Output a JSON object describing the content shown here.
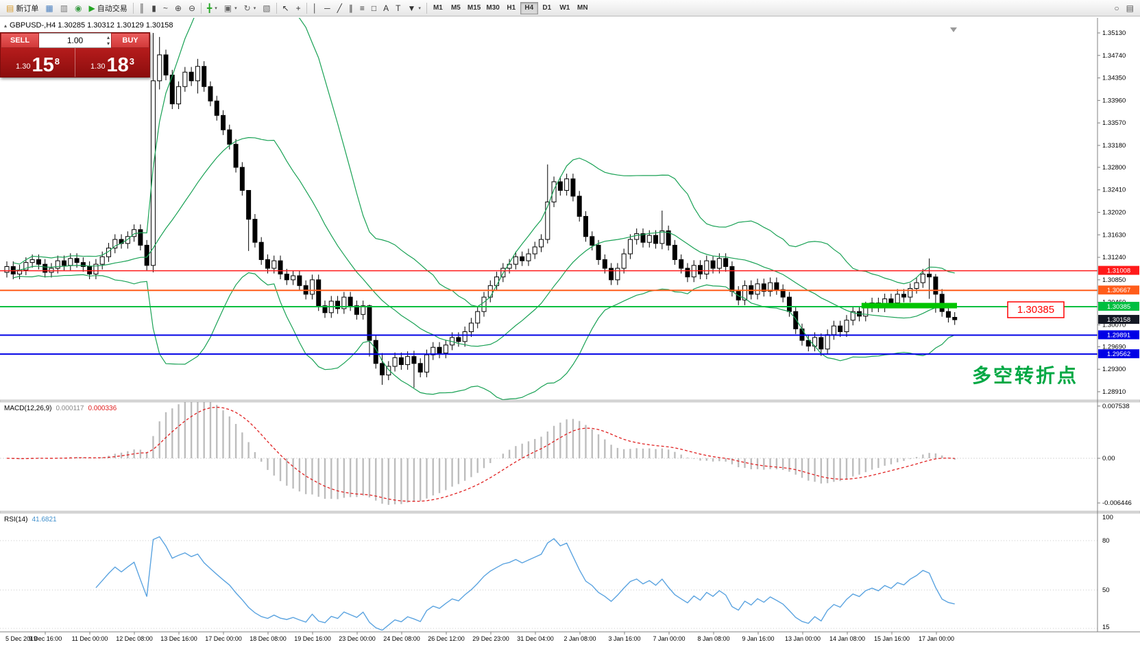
{
  "toolbar": {
    "buttons": [
      {
        "name": "new-order",
        "label": "新订单",
        "glyph": "▤",
        "color": "#d79b2e"
      },
      {
        "name": "chart-list",
        "glyph": "▦",
        "color": "#4a7fbf"
      },
      {
        "name": "market-watch",
        "glyph": "▥",
        "color": "#777777"
      },
      {
        "name": "community",
        "glyph": "◉",
        "color": "#3f9e49"
      },
      {
        "name": "auto-trade",
        "label": "自动交易",
        "glyph": "▶",
        "color": "#23a523"
      },
      {
        "sep": true
      },
      {
        "name": "bar-chart",
        "glyph": "║",
        "color": "#444444"
      },
      {
        "name": "candlestick-chart",
        "glyph": "▮",
        "color": "#444444"
      },
      {
        "name": "line-chart",
        "glyph": "~",
        "color": "#444444"
      },
      {
        "name": "zoom-in",
        "glyph": "⊕",
        "color": "#444444"
      },
      {
        "name": "zoom-out",
        "glyph": "⊖",
        "color": "#444444"
      },
      {
        "sep": true
      },
      {
        "name": "new-chart",
        "glyph": "╋",
        "color": "#23a523",
        "caret": true
      },
      {
        "name": "profiles",
        "glyph": "▣",
        "color": "#666666",
        "caret": true
      },
      {
        "name": "period-cycle",
        "glyph": "↻",
        "color": "#666666",
        "caret": true
      },
      {
        "name": "chart-shift",
        "glyph": "▧",
        "color": "#666666"
      },
      {
        "sep": true
      },
      {
        "name": "cursor",
        "glyph": "↖",
        "color": "#333333"
      },
      {
        "name": "crosshair",
        "glyph": "+",
        "color": "#333333"
      },
      {
        "sep": true
      },
      {
        "name": "vertical-line",
        "glyph": "│",
        "color": "#333333"
      },
      {
        "name": "horizontal-line",
        "glyph": "─",
        "color": "#333333"
      },
      {
        "name": "trendline",
        "glyph": "╱",
        "color": "#333333"
      },
      {
        "name": "equidistant-channel",
        "glyph": "∥",
        "color": "#333333"
      },
      {
        "name": "fibonacci",
        "glyph": "≡",
        "color": "#333333"
      },
      {
        "name": "shapes",
        "glyph": "□",
        "color": "#333333"
      },
      {
        "name": "text",
        "glyph": "A",
        "color": "#333333"
      },
      {
        "name": "text-label",
        "glyph": "T",
        "color": "#333333"
      },
      {
        "name": "arrows",
        "glyph": "▼",
        "color": "#333333",
        "caret": true
      },
      {
        "sep": true
      }
    ],
    "timeframes": [
      "M1",
      "M5",
      "M15",
      "M30",
      "H1",
      "H4",
      "D1",
      "W1",
      "MN"
    ],
    "active_timeframe": "H4",
    "right_icons": [
      {
        "name": "search",
        "glyph": "○",
        "color": "#555555"
      },
      {
        "name": "chart-settings",
        "glyph": "▤",
        "color": "#555555"
      }
    ]
  },
  "symbol_header": {
    "toggle_icon": "▴",
    "text": "GBPUSD-,H4  1.30285 1.30312 1.30129 1.30158"
  },
  "order_panel": {
    "sell_label": "SELL",
    "buy_label": "BUY",
    "volume": "1.00",
    "sell_price_prefix": "1.30",
    "sell_price_big": "15",
    "sell_price_sup": "8",
    "buy_price_prefix": "1.30",
    "buy_price_big": "18",
    "buy_price_sup": "3"
  },
  "chart_data": {
    "type": "candlestick",
    "symbol": "GBPUSD-",
    "timeframe": "H4",
    "ohlc_header": {
      "open": "1.30285",
      "high": "1.30312",
      "low": "1.30129",
      "close": "1.30158"
    },
    "price_ticks": [
      "1.35130",
      "1.34740",
      "1.34350",
      "1.33960",
      "1.33570",
      "1.33180",
      "1.32800",
      "1.32410",
      "1.32020",
      "1.31630",
      "1.31240",
      "1.30850",
      "1.30460",
      "1.30070",
      "1.29690",
      "1.29300",
      "1.28910"
    ],
    "time_labels": [
      "5 Dec 2019",
      "9 Dec 16:00",
      "11 Dec 00:00",
      "12 Dec 08:00",
      "13 Dec 16:00",
      "17 Dec 00:00",
      "18 Dec 08:00",
      "19 Dec 16:00",
      "23 Dec 00:00",
      "24 Dec 08:00",
      "26 Dec 12:00",
      "29 Dec 23:00",
      "31 Dec 04:00",
      "2 Jan 08:00",
      "3 Jan 16:00",
      "7 Jan 00:00",
      "8 Jan 08:00",
      "9 Jan 16:00",
      "13 Jan 00:00",
      "14 Jan 08:00",
      "15 Jan 16:00",
      "17 Jan 00:00"
    ],
    "closes": [
      1.3108,
      1.3095,
      1.3102,
      1.3115,
      1.312,
      1.3112,
      1.3098,
      1.3105,
      1.3118,
      1.311,
      1.3122,
      1.3115,
      1.3108,
      1.3095,
      1.3112,
      1.3125,
      1.314,
      1.3155,
      1.3148,
      1.316,
      1.3172,
      1.3145,
      1.311,
      1.343,
      1.3475,
      1.344,
      1.339,
      1.342,
      1.3445,
      1.343,
      1.3455,
      1.342,
      1.3395,
      1.337,
      1.3345,
      1.332,
      1.328,
      1.324,
      1.319,
      1.315,
      1.312,
      1.3105,
      1.3118,
      1.3095,
      1.3085,
      1.3092,
      1.3075,
      1.306,
      1.3085,
      1.304,
      1.3028,
      1.3048,
      1.3035,
      1.3055,
      1.304,
      1.3025,
      1.304,
      1.298,
      1.294,
      1.292,
      1.2935,
      1.295,
      1.2938,
      1.2952,
      1.294,
      1.2925,
      1.2955,
      1.2968,
      1.2958,
      1.2972,
      1.2985,
      1.2978,
      1.2995,
      1.301,
      1.303,
      1.3055,
      1.3075,
      1.309,
      1.3105,
      1.3112,
      1.3125,
      1.3118,
      1.313,
      1.3142,
      1.3155,
      1.322,
      1.3255,
      1.324,
      1.326,
      1.323,
      1.3195,
      1.316,
      1.3145,
      1.312,
      1.3105,
      1.3085,
      1.3105,
      1.313,
      1.3155,
      1.3165,
      1.315,
      1.3162,
      1.3148,
      1.317,
      1.3145,
      1.312,
      1.3105,
      1.309,
      1.311,
      1.3095,
      1.3118,
      1.3105,
      1.3122,
      1.3108,
      1.3065,
      1.305,
      1.3075,
      1.306,
      1.3078,
      1.3065,
      1.308,
      1.3068,
      1.3055,
      1.303,
      1.3,
      1.298,
      1.297,
      1.2985,
      1.2965,
      1.299,
      1.3005,
      1.2995,
      1.3015,
      1.303,
      1.3022,
      1.3038,
      1.3045,
      1.3038,
      1.3052,
      1.3045,
      1.306,
      1.3055,
      1.307,
      1.308,
      1.3095,
      1.309,
      1.306,
      1.303,
      1.302,
      1.30158
    ],
    "wick_overrides": {
      "23": [
        1.3513,
        1.3098
      ],
      "24": [
        1.3506,
        1.3415
      ],
      "30": [
        1.3468,
        1.3408
      ],
      "38": [
        1.3235,
        1.3135
      ],
      "57": [
        1.3042,
        1.2952
      ],
      "59": [
        1.2958,
        1.2903
      ],
      "64": [
        1.2962,
        1.2898
      ],
      "85": [
        1.3285,
        1.3148
      ],
      "103": [
        1.3205,
        1.3138
      ],
      "128": [
        1.2992,
        1.2953
      ],
      "145": [
        1.3122,
        1.3052
      ],
      "146": [
        1.3095,
        1.3028
      ]
    },
    "bollinger": {
      "period": 20,
      "deviation": 2,
      "color": "#18a154"
    },
    "levels": [
      {
        "price": 1.31008,
        "label": "1.31008",
        "color": "#ff1a1a",
        "width": 1.5
      },
      {
        "price": 1.30667,
        "label": "1.30667",
        "color": "#ff5c1a",
        "width": 2
      },
      {
        "price": 1.30385,
        "label": "1.30385",
        "color": "#00bf40",
        "width": 2
      },
      {
        "price": 1.29891,
        "label": "1.29891",
        "color": "#0000e6",
        "width": 2
      },
      {
        "price": 1.29562,
        "label": "1.29562",
        "color": "#0000e6",
        "width": 2
      }
    ],
    "current_price": {
      "value": 1.30158,
      "label": "1.30158",
      "tag_bg": "#141824"
    },
    "objects": {
      "highlight_bar": {
        "price_top": 1.3045,
        "price_bottom": 1.30355,
        "from_bar": 135,
        "to_bar": 150,
        "color": "#00c400"
      },
      "price_callout": {
        "text": "1.30385",
        "color": "#ff0000"
      },
      "annotation": {
        "text": "多空转折点",
        "color": "#00a844"
      }
    },
    "macd": {
      "label": "MACD(12,26,9)",
      "value_main": "0.000117",
      "value_signal": "0.000336",
      "axis_labels": [
        "0.007538",
        "0.00",
        "-0.006446"
      ],
      "histogram_color": "#bdbdbd",
      "signal_color": "#e02020"
    },
    "rsi": {
      "label": "RSI(14)",
      "value": "41.6821",
      "levels": [
        "100",
        "80",
        "50",
        "15"
      ],
      "line_color": "#5aa3e0"
    }
  }
}
